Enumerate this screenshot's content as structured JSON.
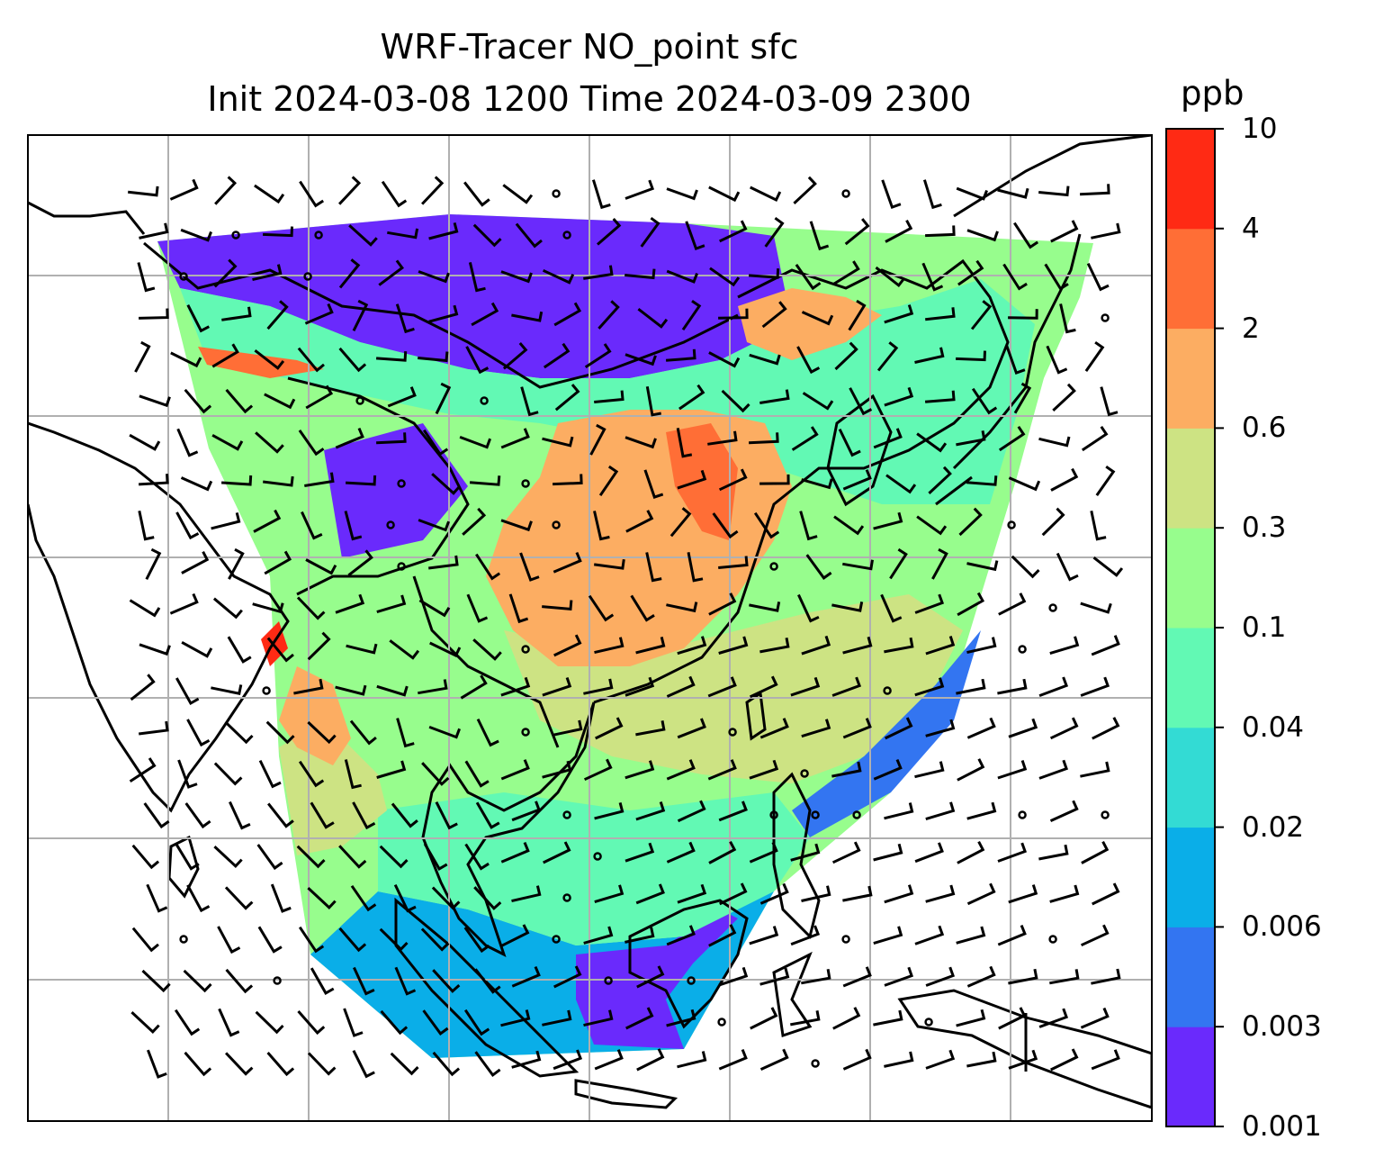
{
  "title": {
    "line1": "WRF-Tracer NO_point sfc",
    "line2": "Init 2024-03-08 1200 Time 2024-03-09 2300"
  },
  "colorbar": {
    "unit": "ppb",
    "ticks": [
      "0.001",
      "0.003",
      "0.006",
      "0.02",
      "0.04",
      "0.1",
      "0.3",
      "0.6",
      "2",
      "4",
      "10"
    ],
    "colors": [
      "#6a2afc",
      "#3375f1",
      "#0aaee8",
      "#33dbd4",
      "#62f9b4",
      "#97fd8d",
      "#cde383",
      "#fcad62",
      "#ff6e36",
      "#ff2a14"
    ]
  },
  "map": {
    "field": "NO_point",
    "level": "sfc",
    "graticule": true,
    "wind_barbs": true,
    "coastlines": true,
    "colors": {
      "gridline": "#b0b0b0",
      "coastline": "#000000",
      "missing": "#ffffff"
    }
  }
}
